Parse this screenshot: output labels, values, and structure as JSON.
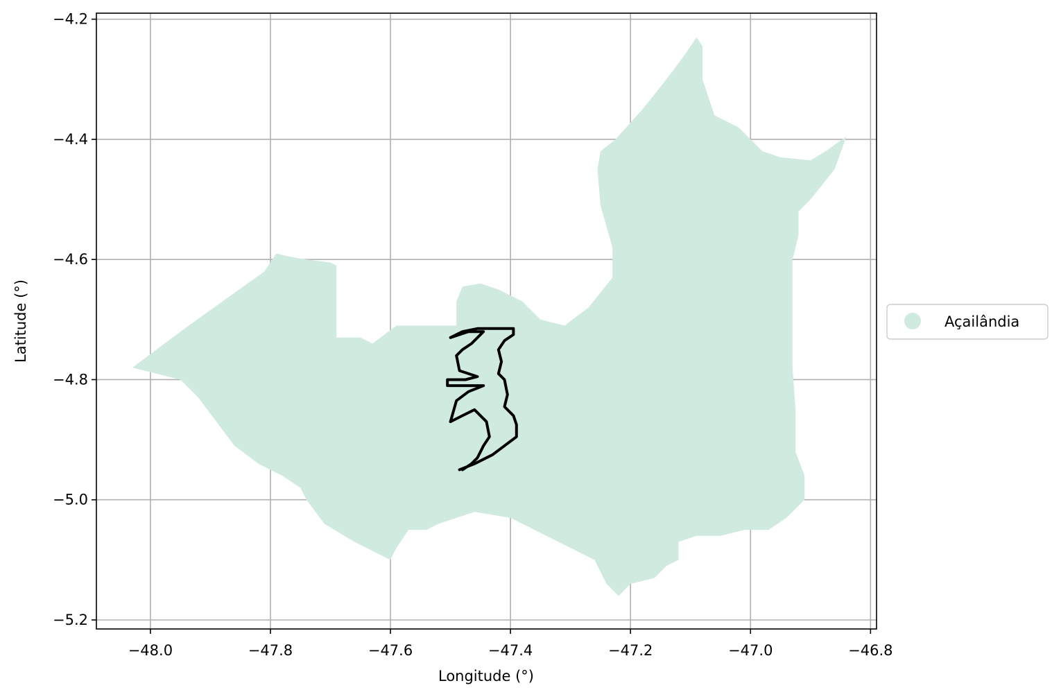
{
  "chart_data": {
    "type": "map",
    "title": "",
    "xlabel": "Longitude (°)",
    "ylabel": "Latitude (°)",
    "xlim": [
      -48.09,
      -46.79
    ],
    "ylim": [
      -5.215,
      -4.19
    ],
    "xticks": [
      -48.0,
      -47.8,
      -47.6,
      -47.4,
      -47.2,
      -47.0,
      -46.8
    ],
    "xtick_labels": [
      "−48.0",
      "−47.8",
      "−47.6",
      "−47.4",
      "−47.2",
      "−47.0",
      "−46.8"
    ],
    "yticks": [
      -4.2,
      -4.4,
      -4.6,
      -4.8,
      -5.0,
      -5.2
    ],
    "ytick_labels": [
      "−4.2",
      "−4.4",
      "−4.6",
      "−4.8",
      "−5.0",
      "−5.2"
    ],
    "grid": true,
    "legend": {
      "placement": "right, outside axes",
      "entries": [
        {
          "label": "Açailândia",
          "color": "#cfebdf",
          "marker": "circle"
        }
      ]
    },
    "layers": [
      {
        "name": "Açailândia",
        "kind": "filled-polygon",
        "fill": "#cfebdf",
        "coordinates": [
          [
            -48.03,
            -4.78
          ],
          [
            -47.95,
            -4.72
          ],
          [
            -47.88,
            -4.67
          ],
          [
            -47.81,
            -4.62
          ],
          [
            -47.79,
            -4.59
          ],
          [
            -47.77,
            -4.595
          ],
          [
            -47.74,
            -4.6
          ],
          [
            -47.7,
            -4.605
          ],
          [
            -47.69,
            -4.61
          ],
          [
            -47.69,
            -4.66
          ],
          [
            -47.69,
            -4.7
          ],
          [
            -47.69,
            -4.73
          ],
          [
            -47.67,
            -4.73
          ],
          [
            -47.65,
            -4.73
          ],
          [
            -47.63,
            -4.74
          ],
          [
            -47.59,
            -4.71
          ],
          [
            -47.52,
            -4.71
          ],
          [
            -47.49,
            -4.71
          ],
          [
            -47.49,
            -4.67
          ],
          [
            -47.48,
            -4.645
          ],
          [
            -47.45,
            -4.64
          ],
          [
            -47.42,
            -4.65
          ],
          [
            -47.38,
            -4.67
          ],
          [
            -47.35,
            -4.7
          ],
          [
            -47.31,
            -4.71
          ],
          [
            -47.27,
            -4.68
          ],
          [
            -47.23,
            -4.63
          ],
          [
            -47.23,
            -4.58
          ],
          [
            -47.25,
            -4.51
          ],
          [
            -47.255,
            -4.45
          ],
          [
            -47.25,
            -4.42
          ],
          [
            -47.225,
            -4.4
          ],
          [
            -47.18,
            -4.35
          ],
          [
            -47.14,
            -4.3
          ],
          [
            -47.11,
            -4.26
          ],
          [
            -47.09,
            -4.23
          ],
          [
            -47.08,
            -4.245
          ],
          [
            -47.08,
            -4.3
          ],
          [
            -47.06,
            -4.36
          ],
          [
            -47.02,
            -4.38
          ],
          [
            -46.98,
            -4.42
          ],
          [
            -46.95,
            -4.43
          ],
          [
            -46.9,
            -4.435
          ],
          [
            -46.875,
            -4.42
          ],
          [
            -46.84,
            -4.395
          ],
          [
            -46.86,
            -4.45
          ],
          [
            -46.9,
            -4.5
          ],
          [
            -46.92,
            -4.52
          ],
          [
            -46.92,
            -4.56
          ],
          [
            -46.93,
            -4.6
          ],
          [
            -46.93,
            -4.65
          ],
          [
            -46.93,
            -4.7
          ],
          [
            -46.93,
            -4.78
          ],
          [
            -46.925,
            -4.85
          ],
          [
            -46.925,
            -4.92
          ],
          [
            -46.91,
            -4.96
          ],
          [
            -46.91,
            -5.0
          ],
          [
            -46.94,
            -5.03
          ],
          [
            -46.97,
            -5.05
          ],
          [
            -47.01,
            -5.05
          ],
          [
            -47.05,
            -5.06
          ],
          [
            -47.09,
            -5.06
          ],
          [
            -47.12,
            -5.07
          ],
          [
            -47.12,
            -5.1
          ],
          [
            -47.14,
            -5.11
          ],
          [
            -47.16,
            -5.13
          ],
          [
            -47.2,
            -5.14
          ],
          [
            -47.22,
            -5.16
          ],
          [
            -47.24,
            -5.14
          ],
          [
            -47.26,
            -5.1
          ],
          [
            -47.3,
            -5.08
          ],
          [
            -47.34,
            -5.06
          ],
          [
            -47.4,
            -5.03
          ],
          [
            -47.46,
            -5.02
          ],
          [
            -47.52,
            -5.04
          ],
          [
            -47.54,
            -5.05
          ],
          [
            -47.57,
            -5.05
          ],
          [
            -47.59,
            -5.08
          ],
          [
            -47.6,
            -5.1
          ],
          [
            -47.66,
            -5.07
          ],
          [
            -47.71,
            -5.04
          ],
          [
            -47.74,
            -5.0
          ],
          [
            -47.75,
            -4.98
          ],
          [
            -47.78,
            -4.96
          ],
          [
            -47.82,
            -4.94
          ],
          [
            -47.86,
            -4.91
          ],
          [
            -47.89,
            -4.87
          ],
          [
            -47.92,
            -4.83
          ],
          [
            -47.95,
            -4.8
          ],
          [
            -47.99,
            -4.79
          ],
          [
            -48.03,
            -4.78
          ]
        ]
      },
      {
        "name": "outline",
        "kind": "polyline",
        "stroke": "#000000",
        "coordinates": [
          [
            -47.485,
            -4.95
          ],
          [
            -47.46,
            -4.94
          ],
          [
            -47.43,
            -4.925
          ],
          [
            -47.41,
            -4.91
          ],
          [
            -47.39,
            -4.895
          ],
          [
            -47.39,
            -4.875
          ],
          [
            -47.395,
            -4.86
          ],
          [
            -47.41,
            -4.845
          ],
          [
            -47.405,
            -4.825
          ],
          [
            -47.41,
            -4.8
          ],
          [
            -47.42,
            -4.79
          ],
          [
            -47.415,
            -4.77
          ],
          [
            -47.42,
            -4.75
          ],
          [
            -47.41,
            -4.735
          ],
          [
            -47.395,
            -4.725
          ],
          [
            -47.395,
            -4.715
          ],
          [
            -47.425,
            -4.715
          ],
          [
            -47.455,
            -4.715
          ],
          [
            -47.48,
            -4.72
          ],
          [
            -47.5,
            -4.73
          ],
          [
            -47.47,
            -4.72
          ],
          [
            -47.445,
            -4.72
          ],
          [
            -47.465,
            -4.74
          ],
          [
            -47.48,
            -4.75
          ],
          [
            -47.49,
            -4.76
          ],
          [
            -47.485,
            -4.785
          ],
          [
            -47.455,
            -4.795
          ],
          [
            -47.475,
            -4.8
          ],
          [
            -47.505,
            -4.8
          ],
          [
            -47.505,
            -4.81
          ],
          [
            -47.475,
            -4.81
          ],
          [
            -47.445,
            -4.81
          ],
          [
            -47.47,
            -4.82
          ],
          [
            -47.49,
            -4.835
          ],
          [
            -47.5,
            -4.87
          ],
          [
            -47.48,
            -4.86
          ],
          [
            -47.46,
            -4.85
          ],
          [
            -47.45,
            -4.86
          ],
          [
            -47.44,
            -4.87
          ],
          [
            -47.435,
            -4.895
          ],
          [
            -47.445,
            -4.91
          ],
          [
            -47.455,
            -4.93
          ],
          [
            -47.465,
            -4.94
          ],
          [
            -47.48,
            -4.95
          ]
        ]
      }
    ]
  }
}
